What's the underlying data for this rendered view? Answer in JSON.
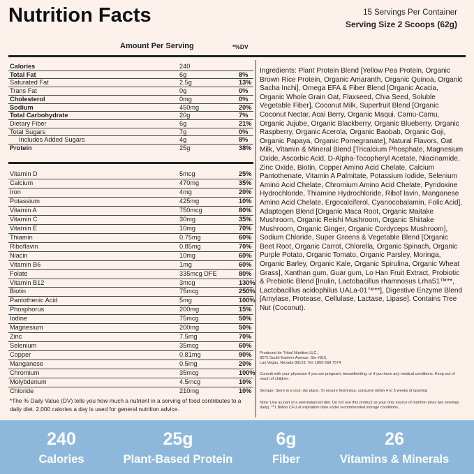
{
  "header": {
    "title": "Nutrition Facts",
    "servings": "15 Servings Per Container",
    "serving_size": "Serving Size 2 Scoops (62g)"
  },
  "table": {
    "amount_label": "Amount Per Serving",
    "dv_label": "*%DV",
    "macros": [
      {
        "name": "Calories",
        "amount": "240",
        "bold": true
      },
      {
        "name": "Total Fat",
        "amount": "6g",
        "dv": "8%",
        "bold": true
      },
      {
        "name": "Saturated Fat",
        "amount": "2.5g",
        "dv": "13%"
      },
      {
        "name": "Trans Fat",
        "amount": "0g",
        "dv": "0%"
      },
      {
        "name": "Cholesterol",
        "amount": "0mg",
        "dv": "0%",
        "bold": true
      },
      {
        "name": "Sodium",
        "amount": "450mg",
        "dv": "20%",
        "bold": true
      },
      {
        "name": "Total Carbohydrate",
        "amount": "20g",
        "dv": "7%",
        "bold": true
      },
      {
        "name": "Dietary Fiber",
        "amount": "6g",
        "dv": "21%"
      },
      {
        "name": "Total Sugars",
        "amount": "7g",
        "dv": "0%"
      },
      {
        "name": "Includes Added Sugars",
        "amount": "4g",
        "dv": "8%",
        "indent": true
      },
      {
        "name": "Protein",
        "amount": "25g",
        "dv": "38%",
        "bold": true
      }
    ],
    "vitamins": [
      {
        "name": "Vitamin D",
        "amount": "5mcg",
        "dv": "25%"
      },
      {
        "name": "Calcium",
        "amount": "470mg",
        "dv": "35%"
      },
      {
        "name": "Iron",
        "amount": "4mg",
        "dv": "20%"
      },
      {
        "name": "Potassium",
        "amount": "425mg",
        "dv": "10%"
      },
      {
        "name": "Vitamin A",
        "amount": "750mcg",
        "dv": "80%"
      },
      {
        "name": "Vitamin C",
        "amount": "30mg",
        "dv": "35%"
      },
      {
        "name": "Vitamin E",
        "amount": "10mg",
        "dv": "70%"
      },
      {
        "name": "Thiamin",
        "amount": "0.75mg",
        "dv": "60%"
      },
      {
        "name": "Riboflavin",
        "amount": "0.85mg",
        "dv": "70%"
      },
      {
        "name": "Niacin",
        "amount": "10mg",
        "dv": "60%"
      },
      {
        "name": "Vitamin B6",
        "amount": "1mg",
        "dv": "60%"
      },
      {
        "name": "Folate",
        "amount": "335mcg DFE",
        "dv": "80%"
      },
      {
        "name": "Vitamin B12",
        "amount": "3mcg",
        "dv": "130%"
      },
      {
        "name": "Biotin",
        "amount": "75mcg",
        "dv": "250%"
      },
      {
        "name": "Pantothenic Acid",
        "amount": "5mg",
        "dv": "100%"
      },
      {
        "name": "Phosphorus",
        "amount": "200mg",
        "dv": "15%"
      },
      {
        "name": "Iodine",
        "amount": "75mcg",
        "dv": "50%"
      },
      {
        "name": "Magnesium",
        "amount": "200mg",
        "dv": "50%"
      },
      {
        "name": "Zinc",
        "amount": "7.5mg",
        "dv": "70%"
      },
      {
        "name": "Selenium",
        "amount": "35mcg",
        "dv": "60%"
      },
      {
        "name": "Copper",
        "amount": "0.81mg",
        "dv": "90%"
      },
      {
        "name": "Manganese",
        "amount": "0.5mg",
        "dv": "20%"
      },
      {
        "name": "Chromium",
        "amount": "35mcg",
        "dv": "100%"
      },
      {
        "name": "Molybdenum",
        "amount": "4.5mcg",
        "dv": "10%"
      },
      {
        "name": "Chloride",
        "amount": "210mg",
        "dv": "10%"
      }
    ],
    "footnote": "*The % Daily Value (DV) tells you how much a nutrient in a serving of food contributes to a daily diet. 2,000 calories a day is used for general nutrition advice."
  },
  "ingredients": "Ingredients: Plant Protein Blend [Yellow Pea Protein, Organic Brown Rice Protein, Organic Amaranth, Organic Quinoa, Organic Sacha Inchi], Omega EFA & Fiber Blend [Organic Acacia, Organic Whole Grain Oat, Flaxseed, Chia Seed, Soluble Vegetable Fiber], Coconut Milk, Superfruit Blend [Organic Coconut Nectar, Acai Berry, Organic Maqui, Camu-Camu, Organic Jujube, Organic Blackberry, Organic Blueberry, Organic Raspberry, Organic Acerola, Organic Baobab, Organic Goji, Organic Papaya, Organic Pomegranate], Natural Flavors, Oat Milk, Vitamin & Mineral Blend [Tricalcium Phosphate, Magnesium Oxide, Ascorbic Acid, D-Alpha-Tocopheryl Acetate, Niacinamide, Zinc Oxide, Biotin, Copper Amino Acid Chelate, Calcium Pantothenate, Vitamin A Palmitate, Potassium Iodide, Selenium Amino Acid Chelate, Chromium Amino Acid Chelate, Pyridoxine Hydrochloride, Thiamine Hydrochloride, Ribof lavin, Manganese Amino Acid Chelate, Ergocalciferol, Cyanocobalamin, Folic Acid], Adaptogen Blend [Organic Maca Root, Organic Maitake Mushroom, Organic Reishi Mushroom, Organic Shiitake Mushroom, Organic Ginger, Organic Cordyceps Mushroom], Sodium Chloride, Super Greens & Vegetable Blend [Organic Beet Root, Organic Carrot, Chlorella, Organic Spinach, Organic Purple Potato, Organic Tomato, Organic Parsley, Moringa, Organic Barley, Organic Kale, Organic Spirulina, Organic Wheat Grass], Xanthan gum, Guar gum, Lo Han Fruit Extract, Probiotic & Prebiotic Blend [Inulin, Lactobacillus rhamnosus Lrha51™**, Lactobacillus acidophilus UALa-01™**], Digestive Enzyme Blend [Amylase, Protease, Cellulase, Lactase, Lipase]. Contains Tree Nut (Coconut).",
  "notes": {
    "address": [
      "Produced for Tribal Nutrition LLC.",
      "8275 South Eastern Avenue, Ste #815,",
      "Las Vegas, Nevada 89123. Tel: 1855 668 7574"
    ],
    "warning": "Consult with your physician if you are pregnant, breastfeeding, or if you have any medical conditions. Keep out of reach of children.",
    "storage": "Storage: Store in a cool, dry place. To ensure freshness, consume within 4 to 5 weeks of opening",
    "note": "Note: Use as part of a well-balanced diet. Do not use this product as your only source of nutrition (max two servings daily). **1 Billion CFU at expiration date under recommended storage conditions."
  },
  "banner": [
    {
      "value": "240",
      "label": "Calories"
    },
    {
      "value": "25g",
      "label": "Plant-Based Protein"
    },
    {
      "value": "6g",
      "label": "Fiber"
    },
    {
      "value": "26",
      "label": "Vitamins & Minerals"
    }
  ]
}
